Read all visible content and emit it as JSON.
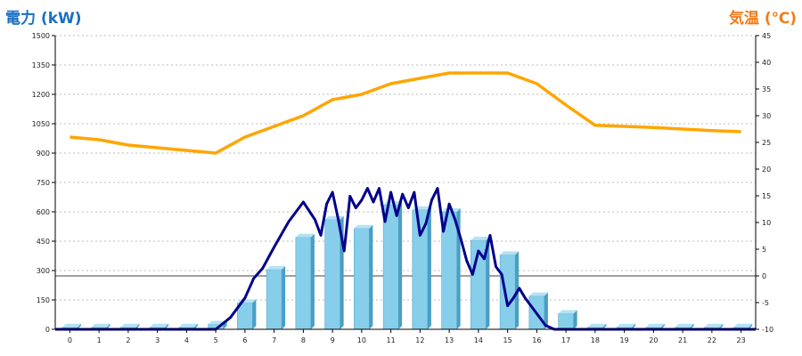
{
  "chart_data": {
    "type": "bar+line",
    "left_axis_label": "電力 (kW)",
    "right_axis_label": "気温 (℃)",
    "colors": {
      "bars": "#87CEEB",
      "bars_side": "#4a9ec4",
      "power_line": "#00008B",
      "temp_line": "#FFA500",
      "grid": "#bbbbbb",
      "left_label": "#1a6fc4",
      "right_label": "#f07c1a"
    },
    "left_ticks": [
      "0",
      "150",
      "300",
      "450",
      "600",
      "750",
      "900",
      "1050",
      "1200",
      "1350",
      "1500"
    ],
    "right_ticks": [
      "-10",
      "-5",
      "0",
      "5",
      "10",
      "15",
      "20",
      "25",
      "30",
      "35",
      "40",
      "45"
    ],
    "x_ticks": [
      "0",
      "1",
      "2",
      "3",
      "4",
      "5",
      "6",
      "7",
      "8",
      "9",
      "10",
      "11",
      "12",
      "13",
      "14",
      "15",
      "16",
      "17",
      "18",
      "19",
      "20",
      "21",
      "22",
      "23"
    ],
    "ylim_left": [
      0,
      1500
    ],
    "ylim_right": [
      -10,
      45
    ],
    "series": [
      {
        "type": "bar",
        "values": [
          10,
          10,
          10,
          10,
          10,
          25,
          135,
          305,
          470,
          560,
          515,
          635,
          610,
          600,
          455,
          380,
          170,
          80,
          10,
          10,
          10,
          10,
          10,
          10
        ]
      },
      {
        "type": "line",
        "x": [
          5,
          5.5,
          6,
          6.3,
          6.6,
          7,
          7.5,
          8,
          8.4,
          8.6,
          8.8,
          9,
          9.2,
          9.4,
          9.6,
          9.8,
          10,
          10.2,
          10.4,
          10.6,
          10.8,
          11,
          11.2,
          11.4,
          11.6,
          11.8,
          12,
          12.2,
          12.4,
          12.6,
          12.8,
          13,
          13.2,
          13.4,
          13.6,
          13.8,
          14,
          14.2,
          14.4,
          14.6,
          14.8,
          15,
          15.2,
          15.4,
          15.6,
          15.8,
          16,
          16.3,
          16.6,
          17,
          17.5,
          18
        ],
        "values": [
          0,
          60,
          160,
          260,
          310,
          420,
          550,
          650,
          560,
          480,
          640,
          700,
          560,
          400,
          680,
          620,
          660,
          720,
          650,
          720,
          550,
          700,
          580,
          690,
          620,
          700,
          480,
          540,
          660,
          720,
          500,
          640,
          560,
          460,
          350,
          280,
          400,
          360,
          480,
          320,
          280,
          120,
          160,
          210,
          160,
          120,
          80,
          20,
          0,
          0,
          0,
          0
        ]
      },
      {
        "type": "line",
        "x": [
          0,
          1,
          2,
          3,
          4,
          5,
          6,
          7,
          8,
          9,
          10,
          11,
          12,
          13,
          14,
          15,
          16,
          17,
          18,
          19,
          20,
          21,
          22,
          23
        ],
        "values": [
          26,
          25.5,
          24.5,
          24,
          23.5,
          23,
          26,
          28,
          30,
          33,
          34,
          36,
          37,
          38,
          38,
          38,
          36,
          32,
          28.2,
          28,
          27.8,
          27.5,
          27.2,
          27
        ]
      }
    ]
  }
}
